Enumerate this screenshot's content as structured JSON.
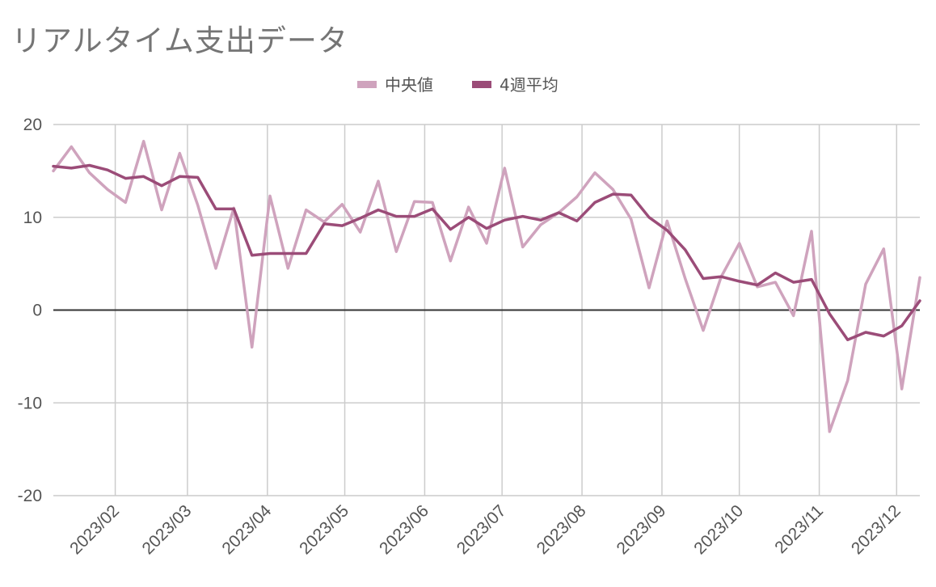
{
  "chart_data": {
    "type": "line",
    "title": "リアルタイム支出データ",
    "xlabel": "",
    "ylabel": "",
    "ylim": [
      -20,
      20
    ],
    "yticks": [
      20,
      10,
      0,
      -10,
      -20
    ],
    "xlim": [
      "2023-01-08",
      "2023-12-10"
    ],
    "xticks": [
      {
        "date": "2023-02-01",
        "label": "2023/02"
      },
      {
        "date": "2023-03-01",
        "label": "2023/03"
      },
      {
        "date": "2023-04-01",
        "label": "2023/04"
      },
      {
        "date": "2023-05-01",
        "label": "2023/05"
      },
      {
        "date": "2023-06-01",
        "label": "2023/06"
      },
      {
        "date": "2023-07-01",
        "label": "2023/07"
      },
      {
        "date": "2023-08-01",
        "label": "2023/08"
      },
      {
        "date": "2023-09-01",
        "label": "2023/09"
      },
      {
        "date": "2023-10-01",
        "label": "2023/10"
      },
      {
        "date": "2023-11-01",
        "label": "2023/11"
      },
      {
        "date": "2023-12-01",
        "label": "2023/12"
      }
    ],
    "grid": true,
    "legend_position": "top-center",
    "x": [
      "2023-01-08",
      "2023-01-15",
      "2023-01-22",
      "2023-01-29",
      "2023-02-05",
      "2023-02-12",
      "2023-02-19",
      "2023-02-26",
      "2023-03-05",
      "2023-03-12",
      "2023-03-19",
      "2023-03-26",
      "2023-04-02",
      "2023-04-09",
      "2023-04-16",
      "2023-04-23",
      "2023-04-30",
      "2023-05-07",
      "2023-05-14",
      "2023-05-21",
      "2023-05-28",
      "2023-06-04",
      "2023-06-11",
      "2023-06-18",
      "2023-06-25",
      "2023-07-02",
      "2023-07-09",
      "2023-07-16",
      "2023-07-23",
      "2023-07-30",
      "2023-08-06",
      "2023-08-13",
      "2023-08-20",
      "2023-08-27",
      "2023-09-03",
      "2023-09-10",
      "2023-09-17",
      "2023-09-24",
      "2023-10-01",
      "2023-10-08",
      "2023-10-15",
      "2023-10-22",
      "2023-10-29",
      "2023-11-05",
      "2023-11-12",
      "2023-11-19",
      "2023-11-26",
      "2023-12-03",
      "2023-12-10"
    ],
    "series": [
      {
        "name": "中央値",
        "color": "#cfa3bd",
        "values": [
          15.0,
          17.6,
          14.8,
          13.0,
          11.6,
          18.2,
          10.8,
          16.9,
          11.3,
          4.5,
          11.0,
          -4.0,
          12.3,
          4.5,
          10.8,
          9.5,
          11.4,
          8.4,
          13.9,
          6.3,
          11.7,
          11.6,
          5.3,
          11.1,
          7.2,
          15.3,
          6.8,
          9.2,
          10.5,
          12.2,
          14.8,
          13.0,
          9.8,
          2.4,
          9.6,
          3.4,
          -2.2,
          3.6,
          7.2,
          2.5,
          3.0,
          -0.6,
          8.5,
          -13.1,
          -7.6,
          2.8,
          6.6,
          -8.5,
          3.5
        ]
      },
      {
        "name": "4週平均",
        "color": "#9b4c78",
        "values": [
          15.5,
          15.3,
          15.6,
          15.1,
          14.2,
          14.4,
          13.4,
          14.4,
          14.3,
          10.9,
          10.9,
          5.9,
          6.1,
          6.1,
          6.1,
          9.3,
          9.1,
          9.9,
          10.8,
          10.1,
          10.1,
          10.9,
          8.7,
          10.0,
          8.8,
          9.7,
          10.1,
          9.7,
          10.5,
          9.6,
          11.6,
          12.5,
          12.4,
          10.0,
          8.6,
          6.5,
          3.4,
          3.6,
          3.1,
          2.7,
          4.0,
          3.0,
          3.3,
          -0.4,
          -3.2,
          -2.4,
          -2.8,
          -1.7,
          1.0
        ]
      }
    ]
  }
}
